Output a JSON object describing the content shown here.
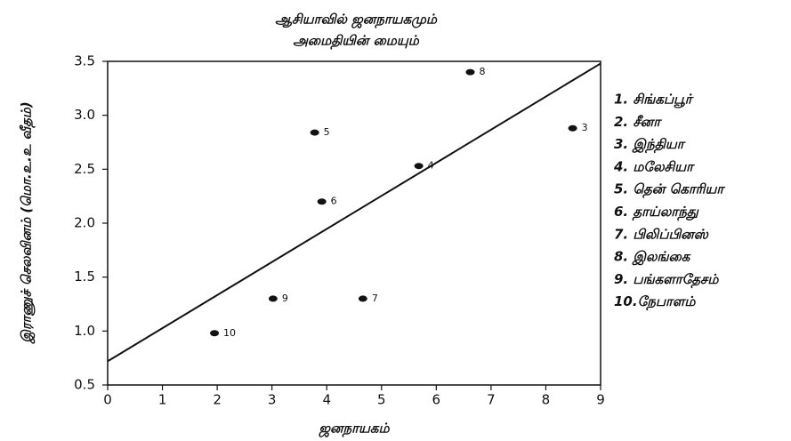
{
  "chart_data": {
    "type": "scatter",
    "title": [
      "ஆசியாவில்  ஜனநாயகமும்",
      "அமைதியின் மையும்"
    ],
    "x_label": "ஜனநாயகம்",
    "y_label": "இராணுச் செலவினம் (மொ.உ.உ வீதம்)",
    "x": [
      6.62,
      8.49,
      3.78,
      5.68,
      3.91,
      3.02,
      4.66,
      1.95
    ],
    "values": [
      3.4,
      2.88,
      2.84,
      2.53,
      2.2,
      1.3,
      1.3,
      0.98
    ],
    "labels": [
      "8",
      "3",
      "5",
      "4",
      "6",
      "9",
      "7",
      "10"
    ],
    "color": "#111111",
    "trendline": {
      "x": [
        0,
        9
      ],
      "values": [
        0.72,
        3.48
      ]
    },
    "xlim": [
      0,
      9
    ],
    "xticks": [
      0,
      1,
      2,
      3,
      4,
      5,
      6,
      7,
      8,
      9
    ],
    "ylim": [
      0.5,
      3.5
    ],
    "yticks": [
      0.5,
      {
        "value": 1,
        "label": "1.0"
      },
      1.5,
      {
        "value": 2,
        "label": "2.0"
      },
      2.5,
      {
        "value": 3,
        "label": "3.0"
      },
      3.5
    ],
    "legend": [
      "1. சிங்கப்பூர்",
      "2. சீனா",
      "3. இந்தியா",
      "4. மலேசியா",
      "5. தென் கொரியா",
      "6. தாய்லாந்து",
      "7. பிலிப்பினஸ்",
      "8. இலங்கை",
      "9. பங்களாதேசம்",
      "10.நேபாளம்"
    ]
  }
}
